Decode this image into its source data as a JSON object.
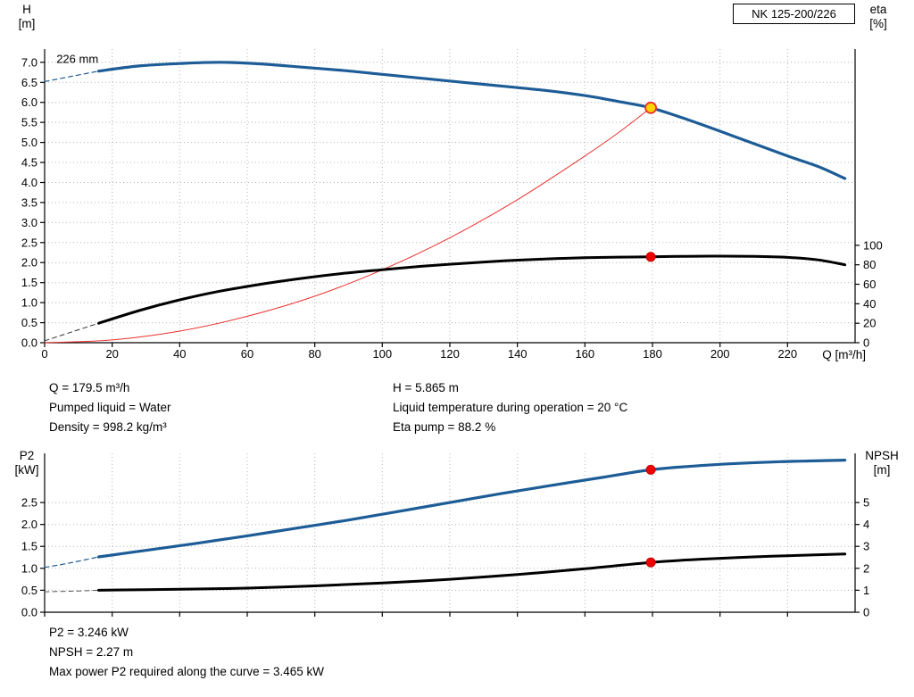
{
  "header": {
    "pump_name": "NK 125-200/226"
  },
  "info_top": {
    "col1": [
      "Q = 179.5 m³/h",
      "Pumped liquid = Water",
      "Density = 998.2 kg/m³"
    ],
    "col2": [
      "H = 5.865 m",
      "Liquid temperature during operation = 20 °C",
      "Eta pump = 88.2 %"
    ]
  },
  "info_bottom": [
    "P2 = 3.246 kW",
    "NPSH = 2.27 m",
    "Max power P2 required along the curve = 3.465 kW"
  ],
  "colors": {
    "curve_blue": "#1d5c96",
    "curve_black": "#000000",
    "curve_red": "#e9322f",
    "marker_red": "#f00000",
    "marker_yellow": "#ffd400",
    "grid_gray": "#b4b4b4"
  },
  "chart_data": [
    {
      "id": "head-eta-chart",
      "type": "line",
      "x_axis": {
        "label": "Q [m³/h]",
        "range": [
          0,
          240
        ],
        "ticks": [
          [
            0,
            "0"
          ],
          [
            20,
            "20"
          ],
          [
            40,
            "40"
          ],
          [
            60,
            "60"
          ],
          [
            80,
            "80"
          ],
          [
            100,
            "100"
          ],
          [
            120,
            "120"
          ],
          [
            140,
            "140"
          ],
          [
            160,
            "160"
          ],
          [
            180,
            "180"
          ],
          [
            200,
            "200"
          ],
          [
            220,
            "220"
          ]
        ]
      },
      "left_axis": {
        "title": [
          "H",
          "[m]"
        ],
        "range": [
          0,
          7.33
        ],
        "ticks": [
          [
            0,
            "0.0"
          ],
          [
            0.5,
            "0.5"
          ],
          [
            1,
            "1.0"
          ],
          [
            1.5,
            "1.5"
          ],
          [
            2,
            "2.0"
          ],
          [
            2.5,
            "2.5"
          ],
          [
            3,
            "3.0"
          ],
          [
            3.5,
            "3.5"
          ],
          [
            4,
            "4.0"
          ],
          [
            4.5,
            "4.5"
          ],
          [
            5,
            "5.0"
          ],
          [
            5.5,
            "5.5"
          ],
          [
            6,
            "6.0"
          ],
          [
            6.5,
            "6.5"
          ],
          [
            7,
            "7.0"
          ]
        ]
      },
      "right_axis": {
        "title": [
          "eta",
          "[%]"
        ],
        "range": [
          0,
          301.5
        ],
        "ticks": [
          [
            0,
            "0"
          ],
          [
            20,
            "20"
          ],
          [
            40,
            "40"
          ],
          [
            60,
            "60"
          ],
          [
            80,
            "80"
          ],
          [
            100,
            "100"
          ]
        ]
      },
      "grid": true,
      "series": [
        {
          "name": "head-lead-dashed",
          "axis": "left",
          "color": "#1d5c96",
          "width": 1.2,
          "dash": "5 4",
          "points": [
            [
              0,
              6.52
            ],
            [
              8,
              6.65
            ],
            [
              16,
              6.78
            ]
          ]
        },
        {
          "name": "head-226mm",
          "axis": "left",
          "color": "#1d5c96",
          "width": 3.2,
          "points": [
            [
              16,
              6.78
            ],
            [
              28,
              6.91
            ],
            [
              40,
              6.97
            ],
            [
              52,
              7.0
            ],
            [
              64,
              6.96
            ],
            [
              76,
              6.88
            ],
            [
              88,
              6.8
            ],
            [
              100,
              6.7
            ],
            [
              112,
              6.6
            ],
            [
              124,
              6.5
            ],
            [
              136,
              6.4
            ],
            [
              148,
              6.3
            ],
            [
              160,
              6.17
            ],
            [
              170,
              6.02
            ],
            [
              179.5,
              5.865
            ],
            [
              190,
              5.58
            ],
            [
              200,
              5.28
            ],
            [
              210,
              4.97
            ],
            [
              220,
              4.66
            ],
            [
              229,
              4.4
            ],
            [
              237,
              4.1
            ]
          ]
        },
        {
          "name": "system-curve",
          "axis": "left",
          "color": "#e9322f",
          "width": 1,
          "points": [
            [
              0,
              0
            ],
            [
              20,
              0.07
            ],
            [
              40,
              0.29
            ],
            [
              60,
              0.66
            ],
            [
              80,
              1.16
            ],
            [
              100,
              1.82
            ],
            [
              120,
              2.62
            ],
            [
              140,
              3.57
            ],
            [
              160,
              4.66
            ],
            [
              170,
              5.25
            ],
            [
              179.5,
              5.865
            ]
          ]
        },
        {
          "name": "eta-lead-dashed",
          "axis": "right",
          "color": "#333333",
          "width": 1,
          "dash": "5 4",
          "points": [
            [
              0,
              2
            ],
            [
              8,
              11
            ],
            [
              16,
              20
            ]
          ]
        },
        {
          "name": "eta-pump",
          "axis": "right",
          "color": "#000000",
          "width": 3,
          "points": [
            [
              16,
              20
            ],
            [
              28,
              33
            ],
            [
              40,
              44
            ],
            [
              52,
              53
            ],
            [
              64,
              60
            ],
            [
              76,
              66
            ],
            [
              88,
              71
            ],
            [
              100,
              75
            ],
            [
              112,
              78.5
            ],
            [
              124,
              81.5
            ],
            [
              136,
              84
            ],
            [
              148,
              86
            ],
            [
              160,
              87.2
            ],
            [
              170,
              87.9
            ],
            [
              179.5,
              88.2
            ],
            [
              190,
              88.7
            ],
            [
              200,
              88.9
            ],
            [
              210,
              88.6
            ],
            [
              220,
              87.6
            ],
            [
              229,
              85
            ],
            [
              237,
              80
            ]
          ]
        }
      ],
      "markers": [
        {
          "name": "duty-point",
          "axis": "left",
          "x": 179.5,
          "y": 5.865,
          "r": 6,
          "fill": "#ffd400",
          "stroke": "#e9322f",
          "sw": 1.8
        },
        {
          "name": "eta-duty-point",
          "axis": "right",
          "x": 179.5,
          "y": 88.2,
          "r": 5,
          "fill": "#f00000",
          "stroke": "#c00000",
          "sw": 1
        }
      ],
      "annotations": [
        {
          "text": "226 mm",
          "axis": "left",
          "x": 3.5,
          "y": 6.98,
          "anchor": "start"
        }
      ]
    },
    {
      "id": "p2-npsh-chart",
      "type": "line",
      "x_axis": {
        "label": "",
        "range": [
          0,
          240
        ],
        "ticks": [
          [
            0,
            ""
          ],
          [
            20,
            ""
          ],
          [
            40,
            ""
          ],
          [
            60,
            ""
          ],
          [
            80,
            ""
          ],
          [
            100,
            ""
          ],
          [
            120,
            ""
          ],
          [
            140,
            ""
          ],
          [
            160,
            ""
          ],
          [
            180,
            ""
          ],
          [
            200,
            ""
          ],
          [
            220,
            ""
          ]
        ]
      },
      "left_axis": {
        "title": [
          "P2",
          "[kW]"
        ],
        "range": [
          0,
          3.62
        ],
        "ticks": [
          [
            0,
            "0.0"
          ],
          [
            0.5,
            "0.5"
          ],
          [
            1,
            "1.0"
          ],
          [
            1.5,
            "1.5"
          ],
          [
            2,
            "2.0"
          ],
          [
            2.5,
            "2.5"
          ]
        ]
      },
      "right_axis": {
        "title": [
          "NPSH",
          "[m]"
        ],
        "range": [
          0,
          7.24
        ],
        "ticks": [
          [
            0,
            "0"
          ],
          [
            1,
            "1"
          ],
          [
            2,
            "2"
          ],
          [
            3,
            "3"
          ],
          [
            4,
            "4"
          ],
          [
            5,
            "5"
          ]
        ]
      },
      "grid": true,
      "series": [
        {
          "name": "p2-lead-dashed",
          "axis": "left",
          "color": "#1d5c96",
          "width": 1.2,
          "dash": "5 4",
          "points": [
            [
              0,
              1.02
            ],
            [
              8,
              1.13
            ],
            [
              16,
              1.26
            ]
          ]
        },
        {
          "name": "p2-power",
          "axis": "left",
          "color": "#1d5c96",
          "width": 3.2,
          "points": [
            [
              16,
              1.26
            ],
            [
              30,
              1.41
            ],
            [
              45,
              1.57
            ],
            [
              60,
              1.74
            ],
            [
              75,
              1.92
            ],
            [
              90,
              2.1
            ],
            [
              105,
              2.3
            ],
            [
              120,
              2.5
            ],
            [
              135,
              2.7
            ],
            [
              150,
              2.89
            ],
            [
              165,
              3.07
            ],
            [
              179.5,
              3.246
            ],
            [
              192,
              3.33
            ],
            [
              205,
              3.39
            ],
            [
              218,
              3.43
            ],
            [
              228,
              3.45
            ],
            [
              237,
              3.465
            ]
          ]
        },
        {
          "name": "npsh-lead-dashed",
          "axis": "right",
          "color": "#555555",
          "width": 1,
          "dash": "5 4",
          "points": [
            [
              0,
              0.93
            ],
            [
              8,
              0.96
            ],
            [
              16,
              1.0
            ]
          ]
        },
        {
          "name": "npsh-curve",
          "axis": "right",
          "color": "#000000",
          "width": 3,
          "points": [
            [
              16,
              1.0
            ],
            [
              40,
              1.05
            ],
            [
              60,
              1.1
            ],
            [
              80,
              1.2
            ],
            [
              100,
              1.33
            ],
            [
              120,
              1.5
            ],
            [
              140,
              1.72
            ],
            [
              160,
              1.98
            ],
            [
              179.5,
              2.27
            ],
            [
              195,
              2.42
            ],
            [
              210,
              2.52
            ],
            [
              225,
              2.6
            ],
            [
              237,
              2.65
            ]
          ]
        }
      ],
      "markers": [
        {
          "name": "p2-duty-point",
          "axis": "left",
          "x": 179.5,
          "y": 3.246,
          "r": 5,
          "fill": "#f00000",
          "stroke": "#c00000",
          "sw": 1
        },
        {
          "name": "npsh-duty-point",
          "axis": "right",
          "x": 179.5,
          "y": 2.27,
          "r": 5,
          "fill": "#f00000",
          "stroke": "#c00000",
          "sw": 1
        }
      ],
      "annotations": []
    }
  ]
}
